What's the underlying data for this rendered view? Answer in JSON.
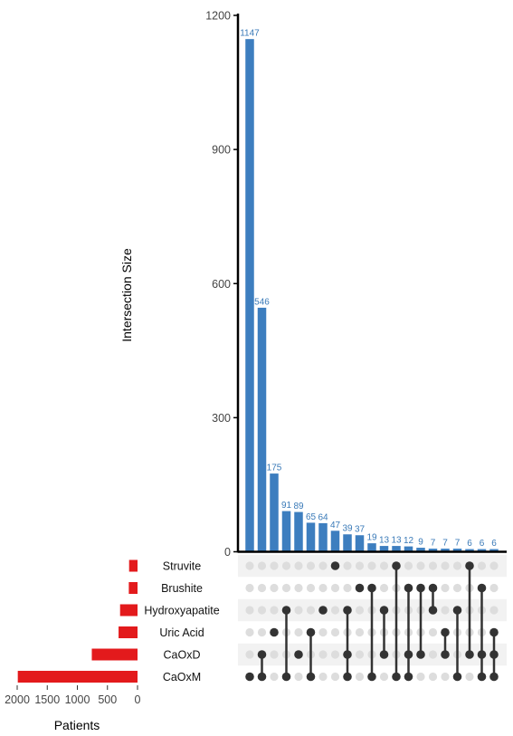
{
  "chart_data": {
    "type": "bar",
    "chart_kind": "upset",
    "ylabel": "Intersection Size",
    "ylim": [
      0,
      1200
    ],
    "yticks": [
      0,
      300,
      600,
      900,
      1200
    ],
    "bar_color": "#3d7ebf",
    "set_bar_color": "#e31a1c",
    "dot_on_color": "#333333",
    "dot_off_color": "#dddddd",
    "stripe_color": "#f2f2f2",
    "sets": [
      "Struvite",
      "Brushite",
      "Hydroxyapatite",
      "Uric Acid",
      "CaOxD",
      "CaOxM"
    ],
    "set_sizes_xlabel": "Patients",
    "set_size_ticks": [
      2000,
      1500,
      1000,
      500,
      0
    ],
    "set_size_labels": [
      "2000",
      "1500",
      "1000",
      "500",
      "0"
    ],
    "set_sizes": [
      140,
      145,
      290,
      315,
      760,
      1990
    ],
    "intersections": [
      {
        "value": 1147,
        "label": "1147",
        "members": [
          "CaOxM"
        ]
      },
      {
        "value": 546,
        "label": "546",
        "members": [
          "CaOxD",
          "CaOxM"
        ]
      },
      {
        "value": 175,
        "label": "175",
        "members": [
          "Uric Acid"
        ]
      },
      {
        "value": 91,
        "label": "91",
        "members": [
          "Hydroxyapatite",
          "CaOxM"
        ]
      },
      {
        "value": 89,
        "label": "89",
        "members": [
          "CaOxD"
        ]
      },
      {
        "value": 65,
        "label": "65",
        "members": [
          "Uric Acid",
          "CaOxM"
        ]
      },
      {
        "value": 64,
        "label": "64",
        "members": [
          "Hydroxyapatite"
        ]
      },
      {
        "value": 47,
        "label": "47",
        "members": [
          "Struvite"
        ]
      },
      {
        "value": 39,
        "label": "39",
        "members": [
          "Hydroxyapatite",
          "CaOxD",
          "CaOxM"
        ]
      },
      {
        "value": 37,
        "label": "37",
        "members": [
          "Brushite"
        ]
      },
      {
        "value": 19,
        "label": "19",
        "members": [
          "Brushite",
          "CaOxM"
        ]
      },
      {
        "value": 13,
        "label": "13",
        "members": [
          "Hydroxyapatite",
          "CaOxD"
        ]
      },
      {
        "value": 13,
        "label": "13",
        "members": [
          "Struvite",
          "CaOxM"
        ]
      },
      {
        "value": 12,
        "label": "12",
        "members": [
          "Brushite",
          "CaOxD",
          "CaOxM"
        ]
      },
      {
        "value": 9,
        "label": "9",
        "members": [
          "Brushite",
          "CaOxD"
        ]
      },
      {
        "value": 7,
        "label": "7",
        "members": [
          "Brushite",
          "Hydroxyapatite"
        ]
      },
      {
        "value": 7,
        "label": "7",
        "members": [
          "Uric Acid",
          "CaOxD"
        ]
      },
      {
        "value": 7,
        "label": "7",
        "members": [
          "Hydroxyapatite",
          "CaOxM"
        ]
      },
      {
        "value": 6,
        "label": "6",
        "members": [
          "Struvite",
          "CaOxD"
        ]
      },
      {
        "value": 6,
        "label": "6",
        "members": [
          "Brushite",
          "CaOxD",
          "CaOxM"
        ]
      },
      {
        "value": 6,
        "label": "6",
        "members": [
          "Uric Acid",
          "CaOxD",
          "CaOxM"
        ]
      }
    ]
  }
}
